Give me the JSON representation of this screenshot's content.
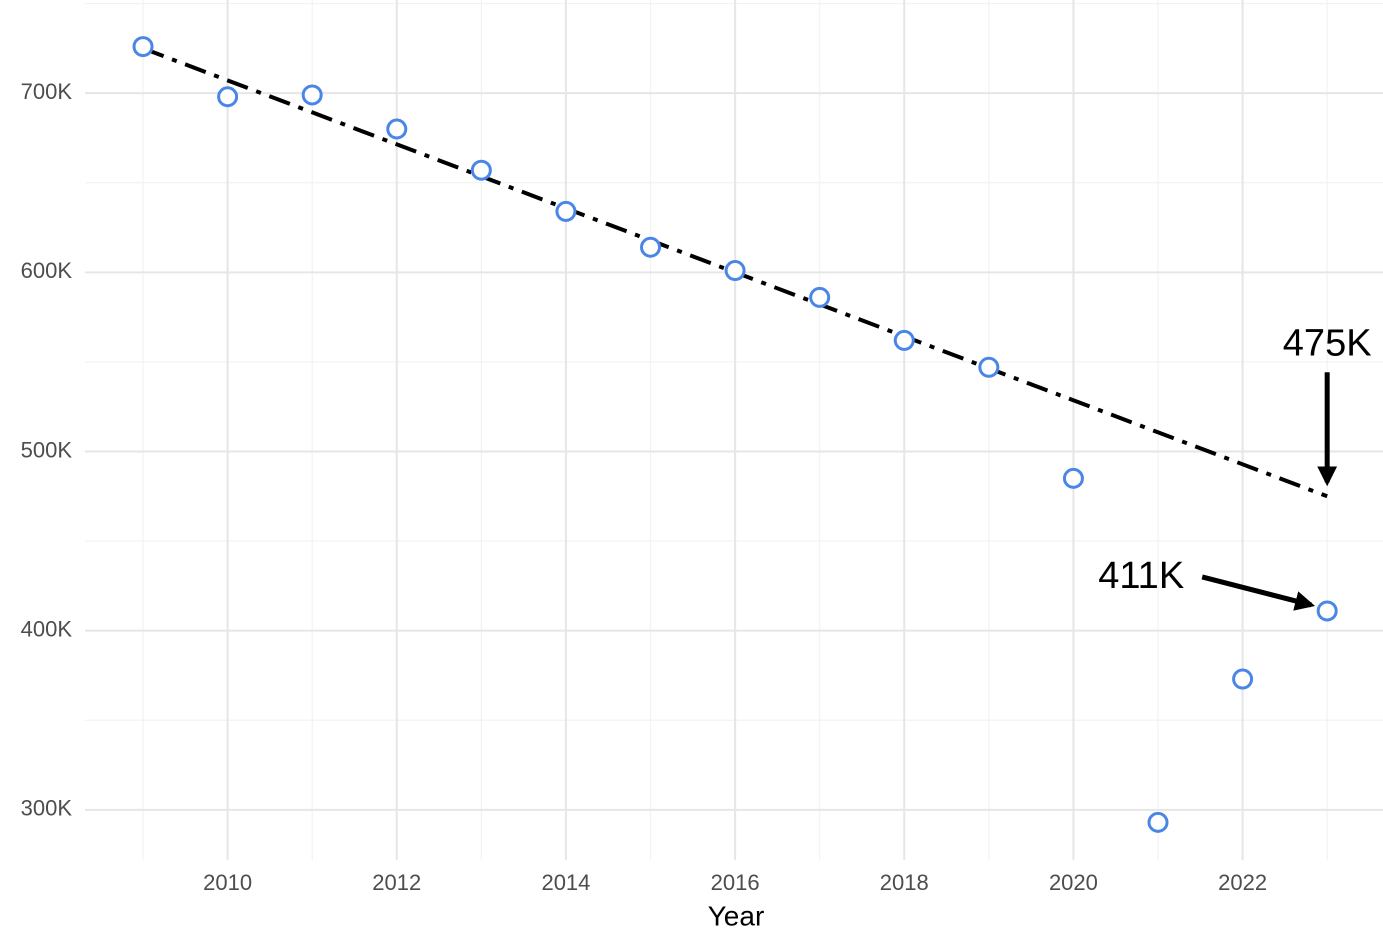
{
  "chart_data": {
    "type": "scatter",
    "x_label": "Year",
    "x": [
      2009,
      2010,
      2011,
      2012,
      2013,
      2014,
      2015,
      2016,
      2017,
      2018,
      2019,
      2020,
      2021,
      2022,
      2023
    ],
    "series": [
      {
        "color": "#4a86e8",
        "values": [
          726000,
          698000,
          699000,
          680000,
          657000,
          634000,
          614000,
          601000,
          586000,
          562000,
          547000,
          485000,
          293000,
          373000,
          411000
        ]
      }
    ],
    "trend": {
      "x": [
        2009,
        2023
      ],
      "values": [
        725000,
        475000
      ],
      "color": "#000000"
    },
    "annotations": [
      {
        "text": "475K",
        "x": 2023,
        "y": 475000
      },
      {
        "text": "411K",
        "x": 2023,
        "y": 411000
      }
    ],
    "xlim": [
      2008.314,
      2023.66
    ],
    "ylim": [
      272000,
      752000
    ],
    "xticks": [
      2010,
      2012,
      2014,
      2016,
      2018,
      2020,
      2022
    ],
    "xminorticks": [
      2009,
      2011,
      2013,
      2015,
      2017,
      2019,
      2021,
      2023
    ],
    "yticks": [
      {
        "value": 300000,
        "label": "300K"
      },
      {
        "value": 400000,
        "label": "400K"
      },
      {
        "value": 500000,
        "label": "500K"
      },
      {
        "value": 600000,
        "label": "600K"
      },
      {
        "value": 700000,
        "label": "700K"
      }
    ],
    "yminorticks": [
      350000,
      450000,
      550000,
      650000,
      750000
    ],
    "grid": true
  }
}
